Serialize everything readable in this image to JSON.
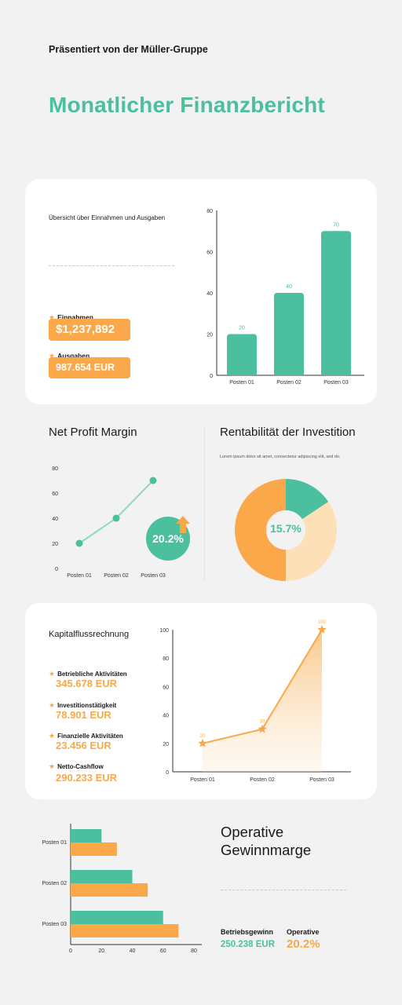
{
  "header": {
    "presented_by": "Präsentiert von der Müller-Gruppe",
    "title": "Monatlicher Finanzbericht"
  },
  "overview": {
    "subtitle": "Übersicht über Einnahmen und Ausgaben",
    "income_label": "Einnahmen",
    "income_value": "$1,237,892",
    "expense_label": "Ausgaben",
    "expense_value": "987.654 EUR"
  },
  "profit_margin": {
    "title": "Net Profit Margin",
    "badge": "20.2%"
  },
  "investment": {
    "title": "Rentabilität der Investition",
    "caption": "Lorem ipsum dolor sit amet, consectetur adipiscing elit, sed do.",
    "center_label": "15.7%"
  },
  "cashflow": {
    "title": "Kapitalflussrechnung",
    "items": [
      {
        "label": "Betriebliche Aktivitäten",
        "value": "345.678 EUR"
      },
      {
        "label": "Investitionstätigkeit",
        "value": "78.901 EUR"
      },
      {
        "label": "Finanzielle Aktivitäten",
        "value": "23.456 EUR"
      },
      {
        "label": "Netto-Cashflow",
        "value": "290.233 EUR"
      }
    ]
  },
  "operating": {
    "title_line1": "Operative",
    "title_line2": "Gewinnmarge",
    "stat1_label": "Betriebsgewinn",
    "stat1_value": "250.238 EUR",
    "stat2_label": "Operative",
    "stat2_value": "20.2%"
  },
  "colors": {
    "green": "#4bbf9e",
    "orange": "#f7a94a",
    "peach": "#fde0b8"
  },
  "chart_data": [
    {
      "id": "bar1",
      "type": "bar",
      "categories": [
        "Posten 01",
        "Posten 02",
        "Posten 03"
      ],
      "values": [
        20,
        40,
        70
      ],
      "ylim": [
        0,
        80
      ],
      "yticks": [
        0,
        20,
        40,
        60,
        80
      ],
      "data_labels": true
    },
    {
      "id": "line1",
      "type": "line",
      "categories": [
        "Posten 01",
        "Posten 02",
        "Posten 03"
      ],
      "values": [
        20,
        40,
        70
      ],
      "ylim": [
        0,
        80
      ],
      "yticks": [
        0,
        20,
        40,
        60,
        80
      ]
    },
    {
      "id": "pie1",
      "type": "pie",
      "slices": [
        {
          "value": 15.7,
          "color": "#4bbf9e"
        },
        {
          "value": 34.3,
          "color": "#fde0b8"
        },
        {
          "value": 50,
          "color": "#fba84a"
        }
      ]
    },
    {
      "id": "area1",
      "type": "area",
      "categories": [
        "Posten 01",
        "Posten 02",
        "Posten 03"
      ],
      "values": [
        20,
        30,
        100
      ],
      "ylim": [
        0,
        100
      ],
      "yticks": [
        0,
        20,
        40,
        60,
        80,
        100
      ],
      "data_labels": true
    },
    {
      "id": "hbar1",
      "type": "bar",
      "orientation": "horizontal",
      "categories": [
        "Posten 01",
        "Posten 02",
        "Posten 03"
      ],
      "series": [
        {
          "values": [
            20,
            40,
            60
          ],
          "color": "#4bbf9e"
        },
        {
          "values": [
            30,
            50,
            70
          ],
          "color": "#fba84a"
        }
      ],
      "xlim": [
        0,
        80
      ],
      "xticks": [
        0,
        20,
        40,
        60,
        80
      ]
    }
  ]
}
